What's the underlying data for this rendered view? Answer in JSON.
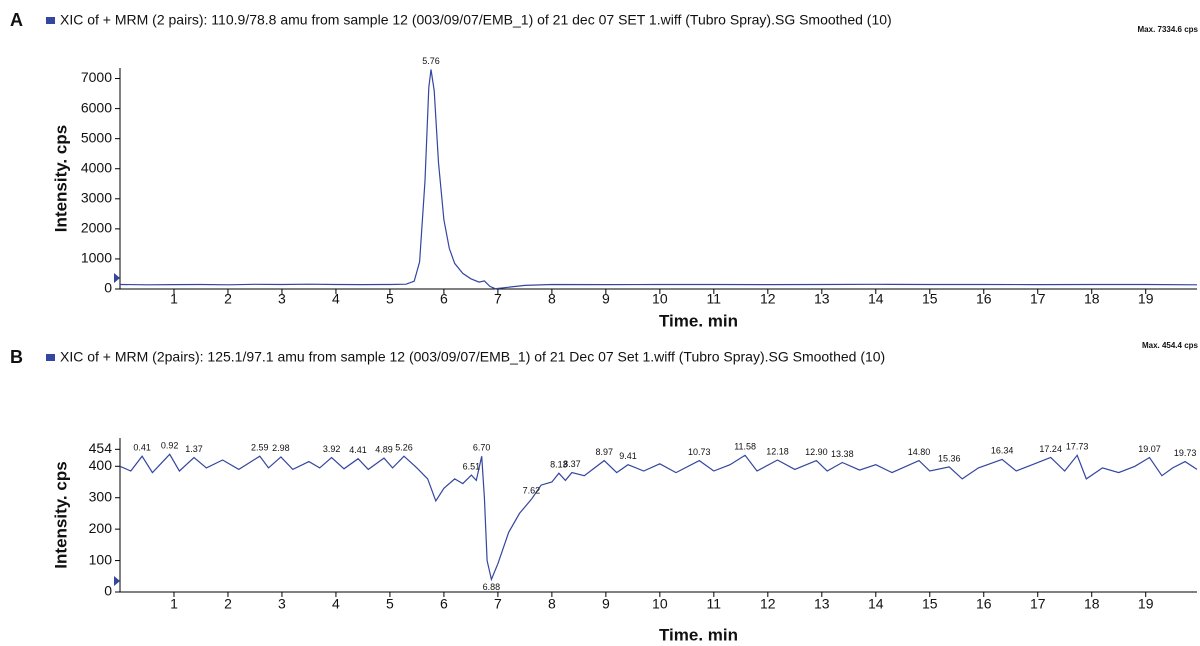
{
  "chart_data": [
    {
      "type": "line",
      "panel": "A",
      "title": "XIC of + MRM (2 pairs): 110.9/78.8 amu from sample 12 (003/09/07/EMB_1) of 21 dec 07 SET 1.wiff (Tubro Spray).SG Smoothed (10)",
      "max_label": "Max. 7334.6 cps",
      "x_label": "Time. min",
      "y_label": "Intensity. cps",
      "xlim": [
        0,
        19.95
      ],
      "ylim": [
        0,
        7350
      ],
      "xticks": [
        1,
        2,
        3,
        4,
        5,
        6,
        7,
        8,
        9,
        10,
        11,
        12,
        13,
        14,
        15,
        16,
        17,
        18,
        19
      ],
      "yticks": [
        0,
        1000,
        2000,
        3000,
        4000,
        5000,
        6000,
        7000
      ],
      "x": [
        0,
        0.5,
        1,
        1.5,
        2,
        2.5,
        3,
        3.5,
        4,
        4.5,
        5,
        5.3,
        5.45,
        5.55,
        5.65,
        5.72,
        5.76,
        5.82,
        5.9,
        6.0,
        6.1,
        6.2,
        6.35,
        6.5,
        6.65,
        6.75,
        6.85,
        6.95,
        7.1,
        7.5,
        8,
        9,
        10,
        11,
        12,
        13,
        14,
        15,
        16,
        17,
        18,
        19,
        19.95
      ],
      "series": [
        {
          "name": "XIC",
          "color": "#3346a0",
          "values": [
            150,
            140,
            145,
            150,
            140,
            155,
            150,
            160,
            150,
            145,
            150,
            160,
            260,
            900,
            3600,
            6700,
            7300,
            6600,
            4200,
            2300,
            1350,
            850,
            520,
            340,
            230,
            270,
            90,
            10,
            40,
            120,
            150,
            145,
            150,
            150,
            145,
            150,
            155,
            150,
            150,
            145,
            150,
            150,
            140
          ]
        }
      ],
      "peak_labels": [
        {
          "x": 5.76,
          "label": "5.76"
        }
      ]
    },
    {
      "type": "line",
      "panel": "B",
      "title": "XIC of + MRM (2pairs): 125.1/97.1 amu from sample 12 (003/09/07/EMB_1) of 21 Dec 07 Set 1.wiff (Tubro Spray).SG Smoothed (10)",
      "max_label": "Max. 454.4 cps",
      "x_label": "Time. min",
      "y_label": "Intensity. cps",
      "xlim": [
        0,
        19.95
      ],
      "ylim": [
        0,
        490
      ],
      "xticks": [
        1,
        2,
        3,
        4,
        5,
        6,
        7,
        8,
        9,
        10,
        11,
        12,
        13,
        14,
        15,
        16,
        17,
        18,
        19
      ],
      "yticks": [
        0,
        100,
        200,
        300,
        400,
        454
      ],
      "x": [
        0,
        0.2,
        0.41,
        0.6,
        0.92,
        1.1,
        1.37,
        1.6,
        1.9,
        2.2,
        2.59,
        2.75,
        2.98,
        3.2,
        3.5,
        3.7,
        3.92,
        4.15,
        4.41,
        4.6,
        4.89,
        5.05,
        5.26,
        5.5,
        5.7,
        5.85,
        6.0,
        6.2,
        6.35,
        6.51,
        6.6,
        6.7,
        6.75,
        6.8,
        6.88,
        7.0,
        7.2,
        7.4,
        7.62,
        7.8,
        8.0,
        8.13,
        8.25,
        8.37,
        8.6,
        8.97,
        9.2,
        9.41,
        9.7,
        10.0,
        10.3,
        10.73,
        11.0,
        11.3,
        11.58,
        11.8,
        12.18,
        12.5,
        12.9,
        13.1,
        13.38,
        13.7,
        14.0,
        14.3,
        14.8,
        15.0,
        15.36,
        15.6,
        15.9,
        16.34,
        16.6,
        16.9,
        17.24,
        17.5,
        17.73,
        17.9,
        18.2,
        18.5,
        18.8,
        19.07,
        19.3,
        19.5,
        19.73,
        19.95
      ],
      "series": [
        {
          "name": "XIC",
          "color": "#3346a0",
          "values": [
            400,
            385,
            432,
            380,
            438,
            385,
            428,
            395,
            420,
            390,
            432,
            395,
            430,
            390,
            415,
            395,
            428,
            392,
            424,
            390,
            426,
            395,
            432,
            395,
            360,
            290,
            330,
            360,
            345,
            372,
            355,
            432,
            300,
            100,
            40,
            90,
            190,
            250,
            295,
            340,
            350,
            378,
            355,
            380,
            370,
            418,
            380,
            405,
            385,
            408,
            380,
            418,
            385,
            405,
            435,
            385,
            420,
            390,
            418,
            385,
            412,
            388,
            405,
            380,
            418,
            385,
            398,
            360,
            395,
            422,
            385,
            405,
            428,
            385,
            435,
            360,
            395,
            380,
            400,
            428,
            370,
            395,
            415,
            390
          ]
        }
      ],
      "peak_labels": [
        {
          "x": 0.41,
          "label": "0.41"
        },
        {
          "x": 0.92,
          "label": "0.92"
        },
        {
          "x": 1.37,
          "label": "1.37"
        },
        {
          "x": 2.59,
          "label": "2.59"
        },
        {
          "x": 2.98,
          "label": "2.98"
        },
        {
          "x": 3.92,
          "label": "3.92"
        },
        {
          "x": 4.41,
          "label": "4.41"
        },
        {
          "x": 4.89,
          "label": "4.89"
        },
        {
          "x": 5.26,
          "label": "5.26"
        },
        {
          "x": 6.51,
          "label": "6.51"
        },
        {
          "x": 6.7,
          "label": "6.70"
        },
        {
          "x": 6.88,
          "label": "6.88"
        },
        {
          "x": 7.62,
          "label": "7.62"
        },
        {
          "x": 8.13,
          "label": "8.13"
        },
        {
          "x": 8.37,
          "label": "8.37"
        },
        {
          "x": 8.97,
          "label": "8.97"
        },
        {
          "x": 9.41,
          "label": "9.41"
        },
        {
          "x": 10.73,
          "label": "10.73"
        },
        {
          "x": 11.58,
          "label": "11.58"
        },
        {
          "x": 12.18,
          "label": "12.18"
        },
        {
          "x": 12.9,
          "label": "12.90"
        },
        {
          "x": 13.38,
          "label": "13.38"
        },
        {
          "x": 14.8,
          "label": "14.80"
        },
        {
          "x": 15.36,
          "label": "15.36"
        },
        {
          "x": 16.34,
          "label": "16.34"
        },
        {
          "x": 17.24,
          "label": "17.24"
        },
        {
          "x": 17.73,
          "label": "17.73"
        },
        {
          "x": 19.07,
          "label": "19.07"
        },
        {
          "x": 19.73,
          "label": "19.73"
        }
      ]
    }
  ]
}
